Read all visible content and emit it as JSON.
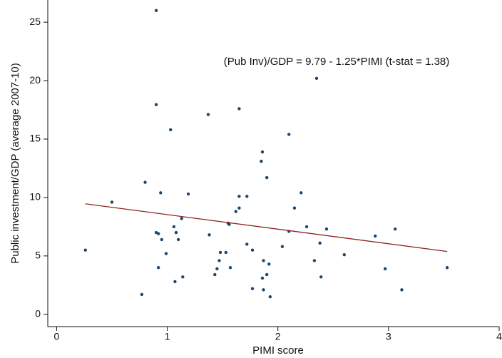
{
  "chart_data": {
    "type": "scatter",
    "annotation": "(Pub Inv)/GDP = 9.79 - 1.25*PIMI (t-stat = 1.38)",
    "x_label": "PIMI score",
    "y_label": "Public investment/GDP (average 2007-10)",
    "xlim": [
      -0.08,
      4.0
    ],
    "ylim": [
      -1.05,
      26.9
    ],
    "xticks": [
      0,
      1,
      2,
      3,
      4
    ],
    "yticks": [
      0,
      5,
      10,
      15,
      20,
      25
    ],
    "series": [
      {
        "color": "#1a476f",
        "x": [
          0.9,
          2.35,
          0.9,
          1.37,
          1.65,
          1.03,
          2.1,
          1.86,
          1.85,
          1.9,
          0.8,
          0.5,
          0.94,
          1.19,
          1.65,
          1.72,
          2.21,
          2.15,
          1.65,
          1.62,
          1.13,
          1.55,
          1.56,
          1.06,
          2.26,
          2.44,
          3.06,
          2.88,
          1.08,
          0.9,
          0.92,
          2.1,
          1.38,
          0.95,
          1.1,
          2.38,
          1.72,
          2.04,
          0.26,
          1.77,
          1.48,
          1.53,
          0.99,
          2.6,
          2.33,
          1.87,
          1.47,
          1.92,
          1.57,
          0.92,
          1.45,
          1.43,
          1.9,
          2.97,
          3.53,
          1.14,
          1.86,
          2.39,
          1.07,
          1.77,
          1.87,
          3.12,
          0.77,
          1.93
        ],
        "values": [
          26.0,
          20.2,
          17.95,
          17.1,
          17.6,
          15.8,
          15.4,
          13.9,
          13.1,
          11.7,
          11.3,
          9.6,
          10.4,
          10.3,
          10.1,
          10.1,
          10.4,
          9.1,
          9.1,
          8.8,
          8.2,
          7.8,
          7.7,
          7.5,
          7.5,
          7.3,
          7.3,
          6.7,
          7.0,
          7.0,
          6.9,
          7.1,
          6.8,
          6.4,
          6.4,
          6.1,
          6.0,
          5.8,
          5.5,
          5.5,
          5.3,
          5.3,
          5.2,
          5.1,
          4.6,
          4.6,
          4.6,
          4.3,
          4.0,
          4.0,
          3.9,
          3.4,
          3.4,
          3.9,
          4.0,
          3.2,
          3.1,
          3.2,
          2.8,
          2.2,
          2.1,
          2.1,
          1.7,
          1.5
        ]
      }
    ],
    "fit": {
      "color": "#8b2323",
      "x": [
        0.26,
        3.53
      ],
      "values": [
        9.46,
        5.38
      ]
    }
  }
}
